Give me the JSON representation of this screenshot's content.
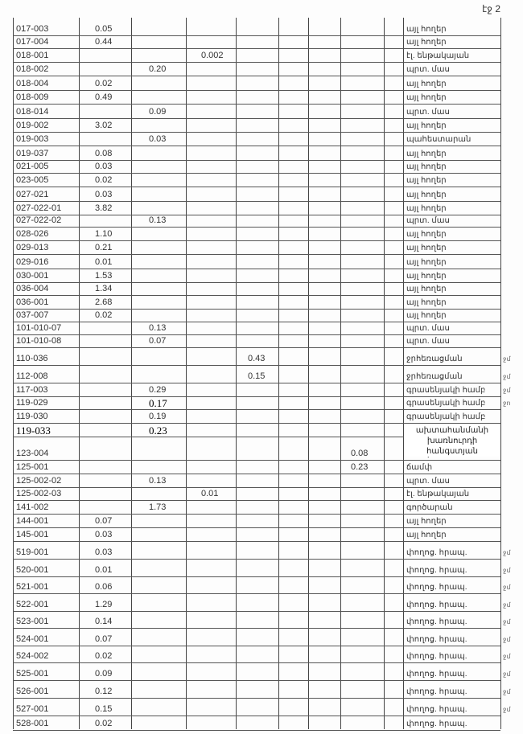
{
  "page_label": "էջ 2",
  "rows": [
    {
      "id": "017-003",
      "v": [
        "0.05",
        "",
        "",
        "",
        "",
        "",
        ""
      ],
      "desc": "այլ հողեր",
      "mark": ""
    },
    {
      "id": "017-004",
      "v": [
        "0.44",
        "",
        "",
        "",
        "",
        "",
        ""
      ],
      "desc": "այլ հողեր",
      "mark": ""
    },
    {
      "id": "018-001",
      "v": [
        "",
        "",
        "0.002",
        "",
        "",
        "",
        ""
      ],
      "desc": "էլ. ենթակայան",
      "mark": ""
    },
    {
      "id": "018-002",
      "v": [
        "",
        "0.20",
        "",
        "",
        "",
        "",
        ""
      ],
      "desc": "պրտ. մաս",
      "mark": ""
    },
    {
      "id": "018-004",
      "v": [
        "0.02",
        "",
        "",
        "",
        "",
        "",
        ""
      ],
      "desc": "այլ հողեր",
      "mark": ""
    },
    {
      "id": "018-009",
      "v": [
        "0.49",
        "",
        "",
        "",
        "",
        "",
        ""
      ],
      "desc": "այլ հողեր",
      "mark": ""
    },
    {
      "id": "018-014",
      "v": [
        "",
        "0.09",
        "",
        "",
        "",
        "",
        ""
      ],
      "desc": "պրտ. մաս",
      "mark": ""
    },
    {
      "id": "019-002",
      "v": [
        "3.02",
        "",
        "",
        "",
        "",
        "",
        ""
      ],
      "desc": "այլ հողեր",
      "mark": ""
    },
    {
      "id": "019-003",
      "v": [
        "",
        "0.03",
        "",
        "",
        "",
        "",
        ""
      ],
      "desc": "պահեստարան",
      "mark": ""
    },
    {
      "id": "019-037",
      "v": [
        "0.08",
        "",
        "",
        "",
        "",
        "",
        ""
      ],
      "desc": "այլ հողեր",
      "mark": ""
    },
    {
      "id": "021-005",
      "v": [
        "0.03",
        "",
        "",
        "",
        "",
        "",
        ""
      ],
      "desc": "այլ հողեր",
      "mark": ""
    },
    {
      "id": "023-005",
      "v": [
        "0.02",
        "",
        "",
        "",
        "",
        "",
        ""
      ],
      "desc": "այլ հողեր",
      "mark": ""
    },
    {
      "id": "027-021",
      "v": [
        "0.03",
        "",
        "",
        "",
        "",
        "",
        ""
      ],
      "desc": "այլ հողեր",
      "mark": ""
    },
    {
      "id": "027-022-01",
      "v": [
        "3.82",
        "",
        "",
        "",
        "",
        "",
        ""
      ],
      "desc": "այլ հողեր",
      "mark": ""
    },
    {
      "id": "027-022-02",
      "v": [
        "",
        "0.13",
        "",
        "",
        "",
        "",
        ""
      ],
      "desc": "պրտ. մաս",
      "mark": ""
    },
    {
      "id": "028-026",
      "v": [
        "1.10",
        "",
        "",
        "",
        "",
        "",
        ""
      ],
      "desc": "այլ հողեր",
      "mark": ""
    },
    {
      "id": "029-013",
      "v": [
        "0.21",
        "",
        "",
        "",
        "",
        "",
        ""
      ],
      "desc": "այլ հողեր",
      "mark": ""
    },
    {
      "id": "029-016",
      "v": [
        "0.01",
        "",
        "",
        "",
        "",
        "",
        ""
      ],
      "desc": "այլ հողեր",
      "mark": ""
    },
    {
      "id": "030-001",
      "v": [
        "1.53",
        "",
        "",
        "",
        "",
        "",
        ""
      ],
      "desc": "այլ հողեր",
      "mark": ""
    },
    {
      "id": "036-004",
      "v": [
        "1.34",
        "",
        "",
        "",
        "",
        "",
        ""
      ],
      "desc": "այլ հողեր",
      "mark": ""
    },
    {
      "id": "036-001",
      "v": [
        "2.68",
        "",
        "",
        "",
        "",
        "",
        ""
      ],
      "desc": "այլ հողեր",
      "mark": ""
    },
    {
      "id": "037-007",
      "v": [
        "0.02",
        "",
        "",
        "",
        "",
        "",
        ""
      ],
      "desc": "այլ հողեր",
      "mark": ""
    },
    {
      "id": "101-010-07",
      "v": [
        "",
        "0.13",
        "",
        "",
        "",
        "",
        ""
      ],
      "desc": "պրտ. մաս",
      "mark": ""
    },
    {
      "id": "101-010-08",
      "v": [
        "",
        "0.07",
        "",
        "",
        "",
        "",
        ""
      ],
      "desc": "պրտ. մաս",
      "mark": ""
    },
    {
      "id": "110-036",
      "v": [
        "",
        "",
        "",
        "0.43",
        "",
        "",
        ""
      ],
      "desc": "ջրհեռացման",
      "mark": "ջմ"
    },
    {
      "id": "112-008",
      "v": [
        "",
        "",
        "",
        "0.15",
        "",
        "",
        ""
      ],
      "desc": "ջրհեռացման",
      "mark": "ջմ"
    },
    {
      "id": "117-003",
      "v": [
        "",
        "0.29",
        "",
        "",
        "",
        "",
        ""
      ],
      "desc": "գրասենյակի համբ",
      "mark": "ջմ"
    },
    {
      "id": "119-029",
      "v": [
        "",
        "0.17",
        "",
        "",
        "",
        "",
        ""
      ],
      "desc": "գրասենյակի համբ",
      "mark": "ջո"
    },
    {
      "id": "119-030",
      "v": [
        "",
        "0.19",
        "",
        "",
        "",
        "",
        ""
      ],
      "desc": "գրասենյակի համբ",
      "mark": ""
    },
    {
      "id": "119-033",
      "v": [
        "",
        "0.23",
        "",
        "",
        "",
        "",
        ""
      ],
      "desc": "",
      "mark": ""
    },
    {
      "id": "123-004",
      "v": [
        "",
        "",
        "",
        "",
        "",
        "",
        "0.08"
      ],
      "desc": "ճամփ",
      "mark": ""
    },
    {
      "id": "125-001",
      "v": [
        "",
        "",
        "",
        "",
        "",
        "",
        "0.23"
      ],
      "desc": "ճամփ",
      "mark": ""
    },
    {
      "id": "125-002-02",
      "v": [
        "",
        "0.13",
        "",
        "",
        "",
        "",
        ""
      ],
      "desc": "պրտ. մաս",
      "mark": ""
    },
    {
      "id": "125-002-03",
      "v": [
        "",
        "",
        "0.01",
        "",
        "",
        "",
        ""
      ],
      "desc": "էլ. ենթակայան",
      "mark": ""
    },
    {
      "id": "141-002",
      "v": [
        "",
        "1.73",
        "",
        "",
        "",
        "",
        ""
      ],
      "desc": "գործարան",
      "mark": ""
    },
    {
      "id": "144-001",
      "v": [
        "0.07",
        "",
        "",
        "",
        "",
        "",
        ""
      ],
      "desc": "այլ հողեր",
      "mark": ""
    },
    {
      "id": "145-001",
      "v": [
        "0.03",
        "",
        "",
        "",
        "",
        "",
        ""
      ],
      "desc": "այլ հողեր",
      "mark": ""
    },
    {
      "id": "519-001",
      "v": [
        "0.03",
        "",
        "",
        "",
        "",
        "",
        ""
      ],
      "desc": "փողոց. հրապ.",
      "mark": "ջմ"
    },
    {
      "id": "520-001",
      "v": [
        "0.01",
        "",
        "",
        "",
        "",
        "",
        ""
      ],
      "desc": "փողոց. հրապ.",
      "mark": "ջմ"
    },
    {
      "id": "521-001",
      "v": [
        "0.06",
        "",
        "",
        "",
        "",
        "",
        ""
      ],
      "desc": "փողոց. հրապ.",
      "mark": "ջմ"
    },
    {
      "id": "522-001",
      "v": [
        "1.29",
        "",
        "",
        "",
        "",
        "",
        ""
      ],
      "desc": "փողոց. հրապ.",
      "mark": "ջմ"
    },
    {
      "id": "523-001",
      "v": [
        "0.14",
        "",
        "",
        "",
        "",
        "",
        ""
      ],
      "desc": "փողոց. հրապ.",
      "mark": "ջմ"
    },
    {
      "id": "524-001",
      "v": [
        "0.07",
        "",
        "",
        "",
        "",
        "",
        ""
      ],
      "desc": "փողոց. հրապ.",
      "mark": "ջմ"
    },
    {
      "id": "524-002",
      "v": [
        "0.02",
        "",
        "",
        "",
        "",
        "",
        ""
      ],
      "desc": "փողոց. հրապ.",
      "mark": "ջմ"
    },
    {
      "id": "525-001",
      "v": [
        "0.09",
        "",
        "",
        "",
        "",
        "",
        ""
      ],
      "desc": "փողոց. հրապ.",
      "mark": "ջմ"
    },
    {
      "id": "526-001",
      "v": [
        "0.12",
        "",
        "",
        "",
        "",
        "",
        ""
      ],
      "desc": "փողոց. հրապ.",
      "mark": "ջմ"
    },
    {
      "id": "527-001",
      "v": [
        "0.15",
        "",
        "",
        "",
        "",
        "",
        ""
      ],
      "desc": "փողոց. հրապ.",
      "mark": "ջմ"
    },
    {
      "id": "528-001",
      "v": [
        "0.02",
        "",
        "",
        "",
        "",
        "",
        ""
      ],
      "desc": "փողոց. հրապ.",
      "mark": ""
    }
  ],
  "note": {
    "line1": "ախտահանմանի",
    "line2": "խառնուրդի հանգստյան"
  }
}
